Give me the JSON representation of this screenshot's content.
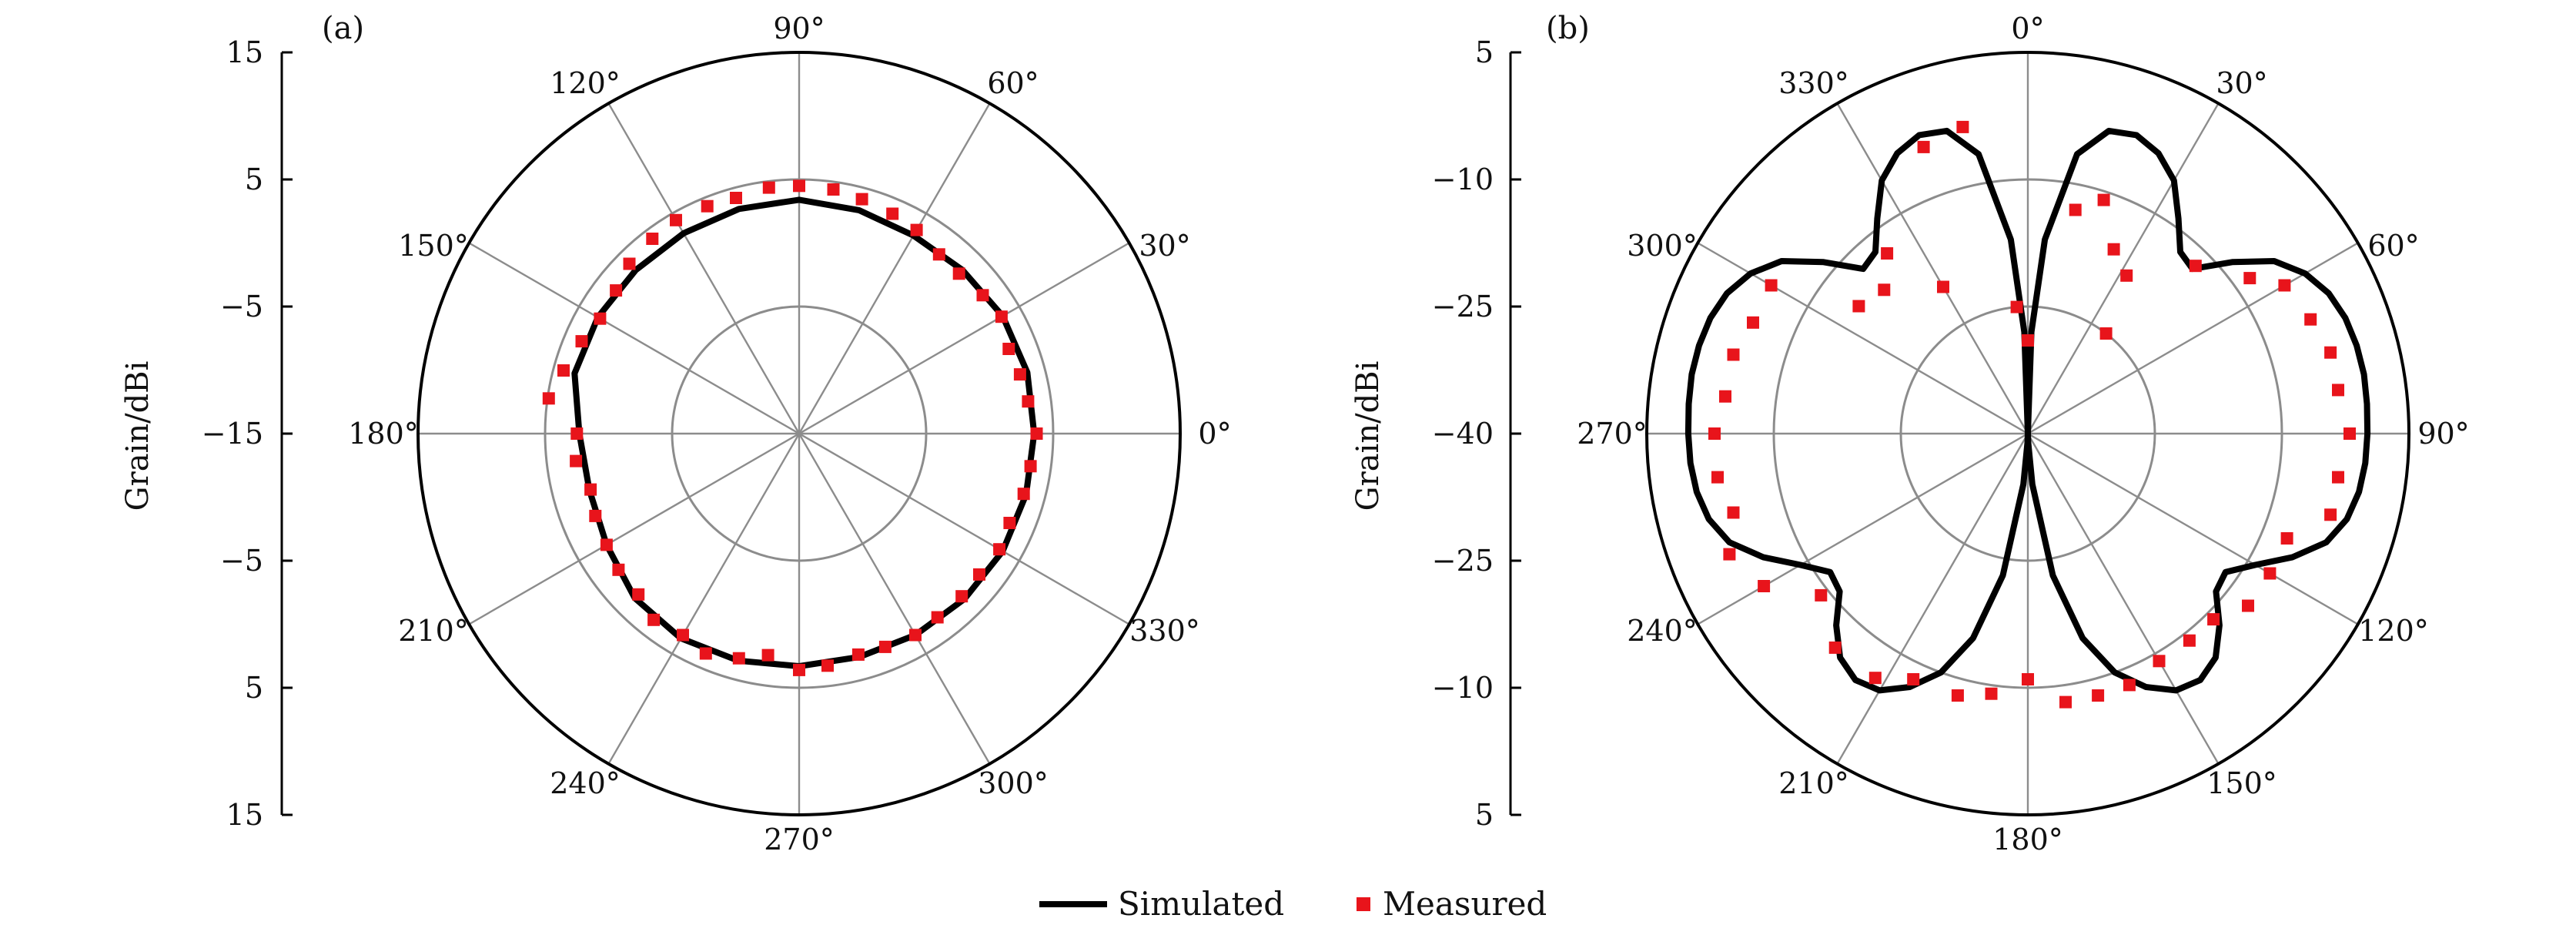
{
  "legend": {
    "simulated": "Simulated",
    "measured": "Measured"
  },
  "colors": {
    "simulated": "#000000",
    "measured": "#e8141b",
    "grid": "#8c8c8c"
  },
  "chart_data": [
    {
      "type": "polar",
      "panel_label": "(a)",
      "ylabel": "Grain/dBi",
      "radial_ticks": [
        "15",
        "5",
        "−5",
        "−15",
        "−5",
        "5",
        "15"
      ],
      "r_range": [
        -15,
        15
      ],
      "grid_circles": [
        -5,
        5,
        15
      ],
      "angle_zero": "right",
      "angle_direction": "counterclockwise",
      "angle_labels": [
        "0°",
        "30°",
        "60°",
        "90°",
        "120°",
        "150°",
        "180°",
        "210°",
        "240°",
        "270°",
        "300°",
        "330°"
      ],
      "series": [
        {
          "name": "Simulated",
          "type": "line",
          "theta": [
            0,
            15,
            30,
            45,
            60,
            75,
            90,
            105,
            120,
            135,
            150,
            165,
            180,
            195,
            210,
            225,
            240,
            255,
            270,
            285,
            300,
            315,
            330,
            345,
            360
          ],
          "r": [
            3.5,
            3.6,
            3.5,
            3.2,
            3.0,
            3.2,
            3.4,
            3.3,
            3.2,
            3.2,
            3.3,
            3.3,
            2.3,
            2.1,
            2.5,
            3.3,
            3.6,
            3.5,
            3.3,
            3.2,
            3.3,
            3.4,
            3.5,
            3.5,
            3.5
          ]
        },
        {
          "name": "Measured",
          "type": "scatter",
          "theta": [
            0,
            8,
            15,
            22,
            30,
            37,
            45,
            52,
            60,
            67,
            75,
            82,
            90,
            97,
            105,
            112,
            120,
            127,
            135,
            142,
            150,
            157,
            165,
            172,
            180,
            187,
            195,
            202,
            210,
            217,
            225,
            232,
            240,
            247,
            255,
            262,
            270,
            277,
            285,
            292,
            300,
            307,
            315,
            322,
            330,
            337,
            345,
            352
          ],
          "r": [
            3.7,
            3.2,
            3.0,
            2.8,
            3.4,
            3.1,
            2.8,
            2.9,
            3.5,
            3.8,
            4.1,
            4.4,
            4.5,
            4.5,
            4.2,
            4.3,
            4.4,
            4.2,
            3.9,
            3.3,
            3.1,
            3.6,
            4.2,
            4.9,
            2.5,
            2.7,
            2.0,
            2.3,
            2.5,
            2.8,
            2.9,
            3.6,
            3.3,
            3.8,
            3.3,
            2.6,
            3.6,
            3.4,
            3.0,
            3.1,
            3.3,
            3.1,
            3.1,
            3.0,
            3.2,
            3.0,
            3.3,
            3.4
          ]
        }
      ]
    },
    {
      "type": "polar",
      "panel_label": "(b)",
      "ylabel": "Grain/dBi",
      "radial_ticks": [
        "5",
        "−10",
        "−25",
        "−40",
        "−25",
        "−10",
        "5"
      ],
      "r_range": [
        -40,
        5
      ],
      "grid_circles": [
        -25,
        -10,
        5
      ],
      "angle_zero": "top",
      "angle_direction": "clockwise",
      "angle_labels": [
        "0°",
        "30°",
        "60°",
        "90°",
        "120°",
        "150°",
        "180°",
        "210°",
        "240°",
        "270°",
        "300°",
        "330°"
      ],
      "series": [
        {
          "name": "Simulated",
          "type": "line",
          "theta": [
            0,
            2,
            5,
            10,
            15,
            20,
            25,
            30,
            35,
            40,
            45,
            50,
            55,
            60,
            65,
            70,
            75,
            80,
            85,
            90,
            95,
            100,
            105,
            110,
            115,
            120,
            125,
            130,
            135,
            140,
            145,
            150,
            155,
            160,
            165,
            170,
            175,
            178,
            180,
            182,
            185,
            190,
            195,
            200,
            205,
            210,
            215,
            220,
            225,
            230,
            235,
            240,
            245,
            250,
            255,
            260,
            265,
            270,
            275,
            280,
            285,
            290,
            295,
            300,
            305,
            310,
            315,
            320,
            325,
            330,
            335,
            340,
            345,
            350,
            355,
            358,
            360
          ],
          "r": [
            -40,
            -28,
            -17,
            -6.5,
            -3.0,
            -2.5,
            -3.5,
            -5.5,
            -9.0,
            -12.0,
            -12.5,
            -8.5,
            -4.5,
            -2.2,
            -0.8,
            -0.1,
            0.2,
            0.3,
            0.2,
            0.1,
            0.0,
            -0.3,
            -1.0,
            -2.5,
            -5.5,
            -9.0,
            -11.5,
            -11.0,
            -8.0,
            -5.5,
            -4.5,
            -5.0,
            -7.0,
            -10.0,
            -15.0,
            -23.0,
            -34.0,
            -39.0,
            -40,
            -39.0,
            -34.0,
            -23.0,
            -15.0,
            -10.0,
            -7.0,
            -5.0,
            -4.5,
            -5.5,
            -8.0,
            -11.0,
            -11.5,
            -9.0,
            -5.5,
            -2.5,
            -1.0,
            -0.3,
            0.0,
            0.1,
            0.2,
            0.3,
            0.2,
            -0.1,
            -0.8,
            -2.2,
            -4.5,
            -8.5,
            -12.5,
            -12.0,
            -9.0,
            -5.5,
            -3.5,
            -2.5,
            -3.0,
            -6.5,
            -17.0,
            -28.0,
            -40
          ]
        },
        {
          "name": "Measured",
          "type": "scatter",
          "theta": [
            0,
            12,
            18,
            25,
            32,
            38,
            45,
            55,
            60,
            68,
            75,
            82,
            90,
            98,
            105,
            112,
            120,
            128,
            135,
            142,
            150,
            158,
            165,
            172,
            180,
            188,
            195,
            205,
            212,
            222,
            232,
            240,
            248,
            255,
            262,
            270,
            277,
            285,
            292,
            300,
            307,
            315,
            322,
            330,
            340,
            348,
            355
          ],
          "r": [
            -29,
            -13,
            -11,
            -16,
            -18,
            -25,
            -12,
            -8,
            -5,
            -4,
            -3,
            -3,
            -2,
            -3,
            -3,
            -7,
            -7,
            -7,
            -9,
            -9,
            -9,
            -8,
            -8,
            -8,
            -11,
            -9,
            -8,
            -8,
            -6,
            -6,
            -9,
            -4,
            -2,
            -4,
            -3,
            -3,
            -4,
            -4,
            -5,
            -5,
            -15,
            -16,
            -13,
            -20,
            -4,
            -3,
            -25
          ]
        }
      ]
    }
  ]
}
